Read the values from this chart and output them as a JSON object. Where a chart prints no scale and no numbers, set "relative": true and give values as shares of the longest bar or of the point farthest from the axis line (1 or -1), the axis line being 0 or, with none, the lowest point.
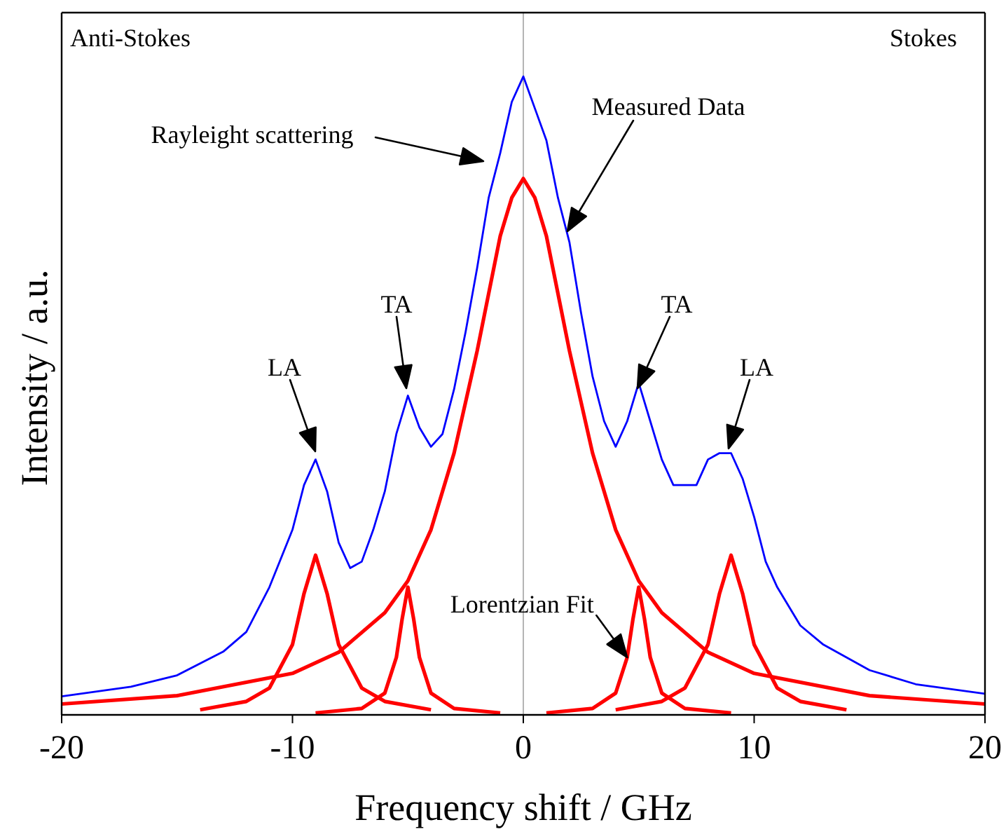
{
  "chart_data": {
    "type": "line",
    "relative": true,
    "xlabel": "Frequency shift / GHz",
    "ylabel": "Intensity / a.u.",
    "xlim": [
      -20,
      20
    ],
    "xticks": [
      -20,
      -10,
      0,
      10,
      20
    ],
    "grid": false,
    "legend": false,
    "marker": "none",
    "line_style": "solid",
    "ref_lines": [
      {
        "axis": "x",
        "value": 0,
        "color": "#b4b4b4"
      }
    ],
    "annotations": [
      "Anti-Stokes",
      "Stokes",
      "Rayleight scattering",
      "Measured Data",
      "TA",
      "TA",
      "LA",
      "LA",
      {
        "text": "Lorentzian Fit",
        "x": 4.5,
        "y": 0.09
      }
    ],
    "series": [
      {
        "color": "#0000ff",
        "x": [
          -20,
          -17,
          -15,
          -13,
          -12,
          -11,
          -10,
          -9.5,
          -9,
          -8.5,
          -8,
          -7.5,
          -7,
          -6.5,
          -6,
          -5.5,
          -5,
          -4.5,
          -4,
          -3.5,
          -3,
          -2.5,
          -2,
          -1.5,
          -1,
          -0.5,
          0,
          0.5,
          1,
          1.5,
          2,
          2.5,
          3,
          3.5,
          4,
          4.5,
          5,
          5.5,
          6,
          6.5,
          7,
          7.5,
          8,
          8.5,
          9,
          9.5,
          10,
          10.5,
          11,
          12,
          13,
          15,
          17,
          20
        ],
        "values": [
          0.029,
          0.044,
          0.062,
          0.099,
          0.13,
          0.2,
          0.29,
          0.36,
          0.4,
          0.35,
          0.27,
          0.23,
          0.24,
          0.29,
          0.35,
          0.44,
          0.5,
          0.45,
          0.42,
          0.44,
          0.51,
          0.6,
          0.7,
          0.81,
          0.88,
          0.96,
          1,
          0.95,
          0.9,
          0.81,
          0.74,
          0.63,
          0.53,
          0.46,
          0.42,
          0.46,
          0.52,
          0.46,
          0.4,
          0.36,
          0.36,
          0.36,
          0.4,
          0.41,
          0.41,
          0.37,
          0.31,
          0.24,
          0.2,
          0.14,
          0.11,
          0.07,
          0.048,
          0.033
        ]
      },
      {
        "color": "#ff0000",
        "x": [
          -20,
          -15,
          -10,
          -8,
          -6,
          -5,
          -4,
          -3,
          -2,
          -1,
          -0.5,
          0,
          0.5,
          1,
          2,
          3,
          4,
          5,
          6,
          8,
          10,
          15,
          20
        ],
        "values": [
          0.017,
          0.03,
          0.065,
          0.098,
          0.16,
          0.21,
          0.29,
          0.41,
          0.57,
          0.75,
          0.81,
          0.84,
          0.81,
          0.75,
          0.57,
          0.41,
          0.29,
          0.21,
          0.16,
          0.098,
          0.065,
          0.03,
          0.017
        ]
      },
      {
        "color": "#ff0000",
        "x": [
          -14,
          -12,
          -11,
          -10,
          -9.5,
          -9,
          -8.5,
          -8,
          -7,
          -6,
          -4
        ],
        "values": [
          0.008,
          0.021,
          0.042,
          0.11,
          0.19,
          0.25,
          0.19,
          0.11,
          0.042,
          0.021,
          0.008
        ]
      },
      {
        "color": "#ff0000",
        "x": [
          4,
          6,
          7,
          8,
          8.5,
          9,
          9.5,
          10,
          11,
          12,
          14
        ],
        "values": [
          0.008,
          0.021,
          0.042,
          0.11,
          0.19,
          0.25,
          0.19,
          0.11,
          0.042,
          0.021,
          0.008
        ]
      },
      {
        "color": "#ff0000",
        "x": [
          -9,
          -7,
          -6,
          -5.5,
          -5.25,
          -5,
          -4.75,
          -4.5,
          -4,
          -3,
          -1
        ],
        "values": [
          0.003,
          0.01,
          0.034,
          0.09,
          0.15,
          0.2,
          0.15,
          0.09,
          0.034,
          0.01,
          0.003
        ]
      },
      {
        "color": "#ff0000",
        "x": [
          1,
          3,
          4,
          4.5,
          4.75,
          5,
          5.25,
          5.5,
          6,
          7,
          9
        ],
        "values": [
          0.003,
          0.01,
          0.034,
          0.09,
          0.15,
          0.2,
          0.15,
          0.09,
          0.034,
          0.01,
          0.003
        ]
      }
    ]
  }
}
